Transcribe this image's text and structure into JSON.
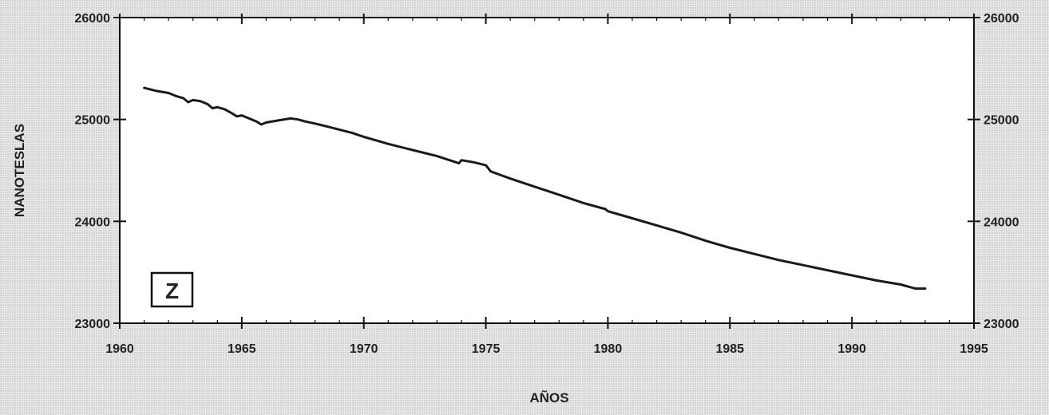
{
  "chart_data": {
    "type": "line",
    "panel_label": "Z",
    "xlabel": "AÑOS",
    "ylabel": "NANOTESLAS",
    "xlim": [
      1960,
      1995
    ],
    "ylim": [
      23000,
      26000
    ],
    "xticks": [
      1960,
      1965,
      1970,
      1975,
      1980,
      1985,
      1990,
      1995
    ],
    "yticks": [
      23000,
      24000,
      25000,
      26000
    ],
    "x_minor_step": 1,
    "grid": false,
    "right_axis_labels": true,
    "colors": {
      "line": "#1a1a1a",
      "plot_background": "#ffffff",
      "page_background": "#e9e9e9"
    },
    "series": [
      {
        "x": [
          1961.0,
          1961.5,
          1962.0,
          1962.3,
          1962.6,
          1962.8,
          1963.0,
          1963.3,
          1963.6,
          1963.8,
          1964.0,
          1964.3,
          1964.6,
          1964.8,
          1965.0,
          1965.3,
          1965.6,
          1965.8,
          1966.0,
          1966.5,
          1967.0,
          1967.3,
          1967.6,
          1968.0,
          1968.5,
          1969.0,
          1969.5,
          1970.0,
          1971.0,
          1972.0,
          1973.0,
          1973.9,
          1974.0,
          1974.5,
          1975.0,
          1975.2,
          1976.0,
          1977.0,
          1978.0,
          1979.0,
          1979.9,
          1980.0,
          1981.0,
          1982.0,
          1983.0,
          1984.0,
          1985.0,
          1986.0,
          1987.0,
          1988.0,
          1989.0,
          1990.0,
          1991.0,
          1992.0,
          1992.6,
          1993.0
        ],
        "y": [
          25310,
          25280,
          25260,
          25230,
          25210,
          25170,
          25190,
          25180,
          25150,
          25110,
          25120,
          25100,
          25060,
          25030,
          25040,
          25010,
          24980,
          24950,
          24970,
          24990,
          25010,
          25000,
          24980,
          24960,
          24930,
          24900,
          24870,
          24830,
          24760,
          24700,
          24640,
          24570,
          24600,
          24580,
          24550,
          24490,
          24420,
          24340,
          24260,
          24180,
          24120,
          24100,
          24030,
          23960,
          23890,
          23810,
          23740,
          23680,
          23620,
          23570,
          23520,
          23470,
          23420,
          23380,
          23340,
          23340
        ]
      }
    ]
  }
}
